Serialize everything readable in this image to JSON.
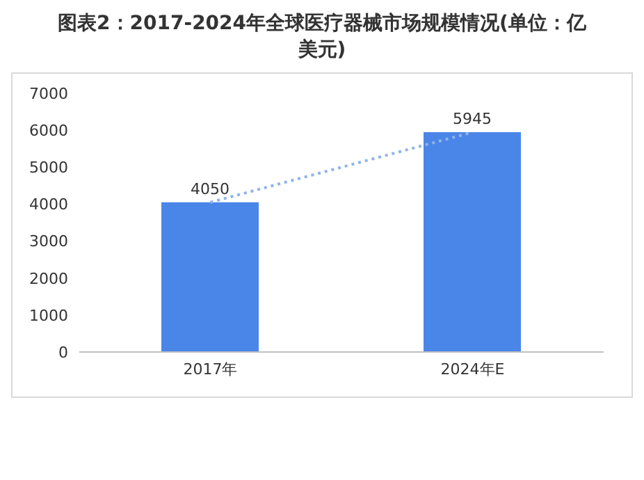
{
  "chart_data": {
    "type": "bar",
    "title": "图表2：2017-2024年全球医疗器械市场规模情况(单位：亿美元)",
    "categories": [
      "2017年",
      "2024年E"
    ],
    "series": [
      {
        "color": "#4a86e8",
        "values": [
          4050,
          5945
        ],
        "value_labels": [
          "4050",
          "5945"
        ]
      },
      {
        "type": "line",
        "color": "#8fb4e8",
        "values": [
          4050,
          5945
        ],
        "line_style": "dotted",
        "marker": "none"
      }
    ],
    "ylim": [
      0,
      7000
    ],
    "yticks": [
      0,
      1000,
      2000,
      3000,
      4000,
      5000,
      6000,
      7000
    ],
    "grid": false,
    "legend": false
  }
}
